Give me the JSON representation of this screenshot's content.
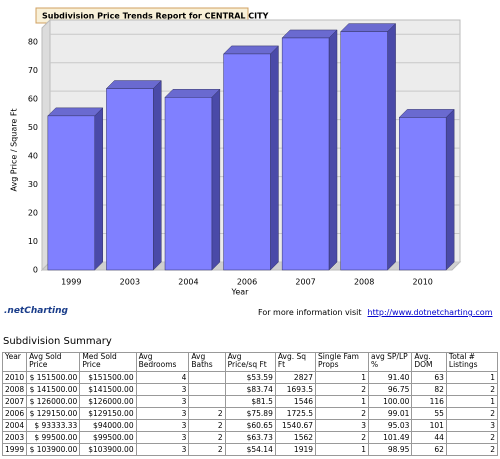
{
  "chart_data": {
    "type": "bar",
    "title": "Subdivision Price Trends Report for CENTRAL CITY",
    "x_label": "Year",
    "y_label": "Avg Price / Square Ft",
    "categories": [
      "1999",
      "2003",
      "2004",
      "2006",
      "2007",
      "2008",
      "2010"
    ],
    "values": [
      54.14,
      63.73,
      60.65,
      75.89,
      81.5,
      83.74,
      53.59
    ],
    "color": "#8080ff",
    "ylim": [
      0,
      85
    ],
    "yticks": [
      0,
      10,
      20,
      30,
      40,
      50,
      60,
      70,
      80
    ],
    "grid": true
  },
  "footer": {
    "logo": ".netCharting",
    "text": "For more information visit",
    "link": "http://www.dotnetcharting.com"
  },
  "table": {
    "title": "Subdivision Summary",
    "columns": [
      "Year",
      "Avg Sold Price",
      "Med Sold Price",
      "Avg Bedrooms",
      "Avg Baths",
      "Avg Price/sq Ft",
      "Avg. Sq Ft",
      "Single Fam Props",
      "avg SP/LP %",
      "Avg. DOM",
      "Total # Listings"
    ],
    "rows": [
      [
        "2010",
        "$ 151500.00",
        "$151500.00",
        "4",
        null,
        "$53.59",
        "2827",
        "1",
        "91.40",
        "63",
        "1"
      ],
      [
        "2008",
        "$ 141500.00",
        "$141500.00",
        "3",
        null,
        "$83.74",
        "1693.5",
        "2",
        "96.75",
        "82",
        "2"
      ],
      [
        "2007",
        "$ 126000.00",
        "$126000.00",
        "3",
        null,
        "$81.5",
        "1546",
        "1",
        "100.00",
        "116",
        "1"
      ],
      [
        "2006",
        "$ 129150.00",
        "$129150.00",
        "3",
        "2",
        "$75.89",
        "1725.5",
        "2",
        "99.01",
        "55",
        "2"
      ],
      [
        "2004",
        "$ 93333.33",
        "$94000.00",
        "3",
        "2",
        "$60.65",
        "1540.67",
        "3",
        "95.03",
        "101",
        "3"
      ],
      [
        "2003",
        "$ 99500.00",
        "$99500.00",
        "3",
        "2",
        "$63.73",
        "1562",
        "2",
        "101.49",
        "44",
        "2"
      ],
      [
        "1999",
        "$ 103900.00",
        "$103900.00",
        "3",
        "2",
        "$54.14",
        "1919",
        "1",
        "98.95",
        "62",
        "2"
      ]
    ]
  }
}
